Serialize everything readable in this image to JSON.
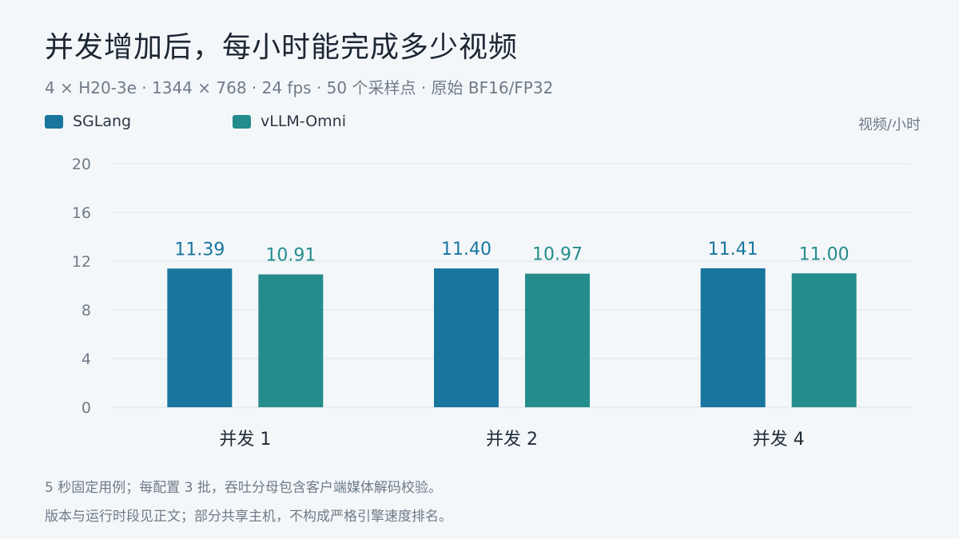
{
  "title": "并发增加后，每小时能完成多少视频",
  "subtitle": "4 × H20-3e  ·  1344 × 768  ·  24 fps  ·  50 个采样点  ·  原始 BF16/FP32",
  "unit_label": "视频/小时",
  "notes": [
    "5 秒固定用例；每配置 3 批，吞吐分母包含客户端媒体解码校验。",
    "版本与运行时段见正文；部分共享主机，不构成严格引擎速度排名。"
  ],
  "colors": {
    "background": "#f4f7fa",
    "grid": "#dde3e8",
    "axis_text": "#6e7b87"
  },
  "chart_data": {
    "type": "bar",
    "title": "并发增加后，每小时能完成多少视频",
    "ylabel": "视频/小时",
    "categories": [
      "并发 1",
      "并发 2",
      "并发 4"
    ],
    "series": [
      {
        "name": "SGLang",
        "color": "#18769e",
        "label_color": "#18769e",
        "values": [
          11.39,
          11.4,
          11.41
        ]
      },
      {
        "name": "vLLM-Omni",
        "color": "#258c8c",
        "label_color": "#258c8c",
        "values": [
          10.91,
          10.97,
          11.0
        ]
      }
    ],
    "ylim": [
      0,
      20
    ],
    "yticks": [
      0,
      4,
      8,
      12,
      16,
      20
    ],
    "grid": true,
    "legend_position": "top-left"
  }
}
